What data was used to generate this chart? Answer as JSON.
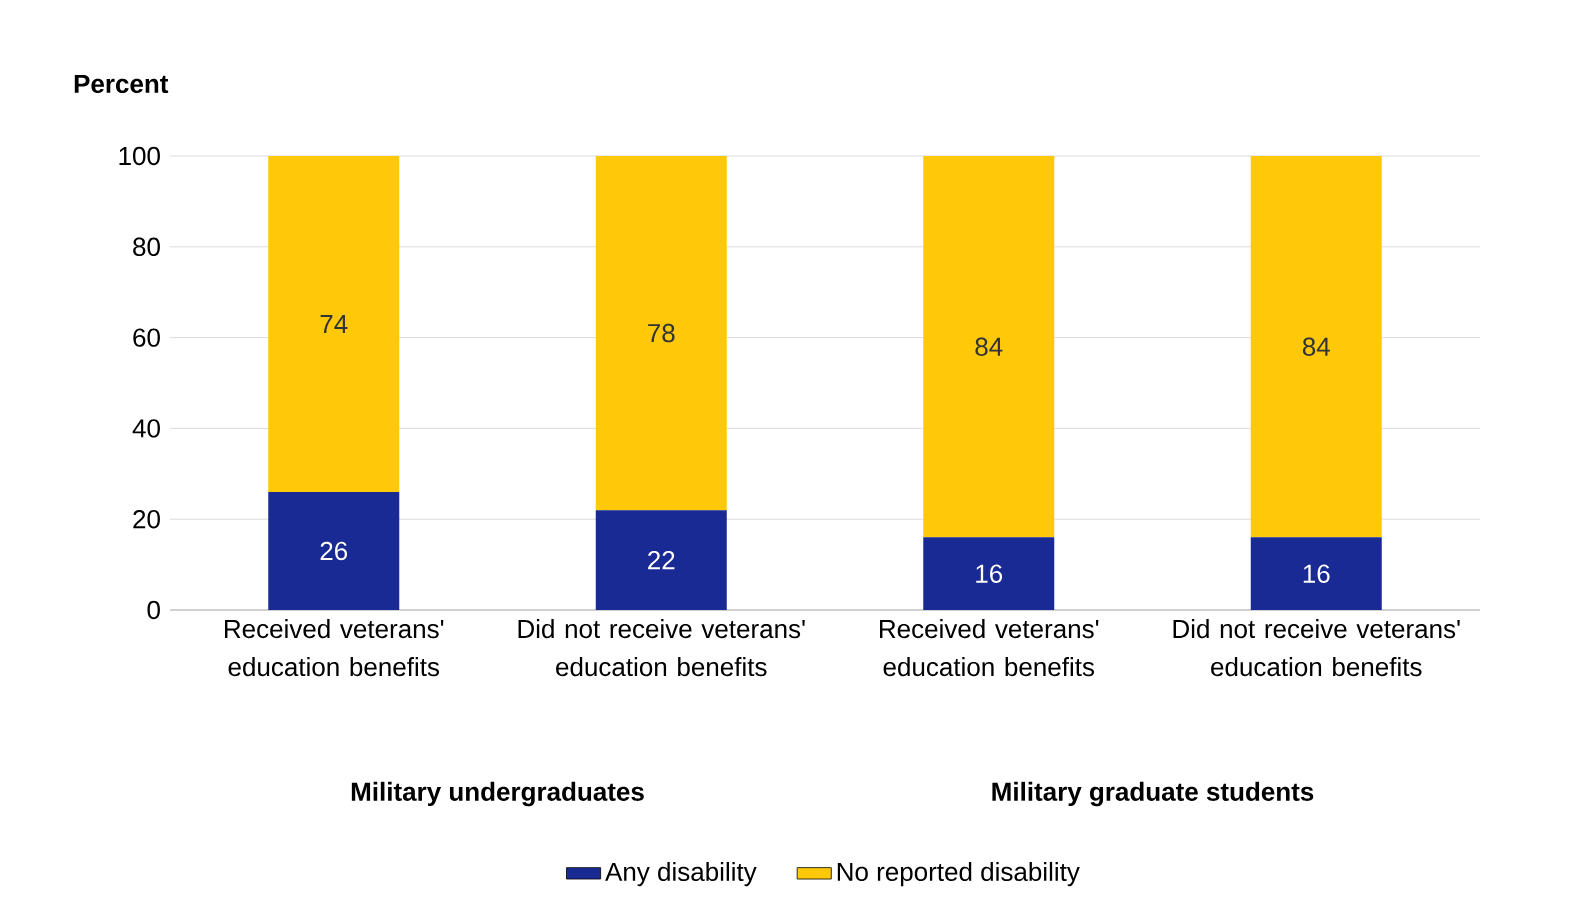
{
  "chart_data": {
    "type": "bar",
    "stacked": true,
    "ylabel": "Percent",
    "categories": [
      "Received veterans' education benefits",
      "Did not receive veterans' education benefits",
      "Received veterans' education benefits",
      "Did not receive veterans' education benefits"
    ],
    "series": [
      {
        "name": "Any disability",
        "color": "#1a2a94",
        "values": [
          26,
          22,
          16,
          16
        ]
      },
      {
        "name": "No reported disability",
        "color": "#ffc90a",
        "values": [
          74,
          78,
          84,
          84
        ]
      }
    ],
    "ylim": [
      0,
      100
    ],
    "yticks": [
      0,
      20,
      40,
      60,
      80,
      100
    ],
    "grid": "y",
    "legend": "bottom",
    "data_labels": true,
    "annotations": [
      "Military undergraduates",
      "Military graduate students"
    ]
  }
}
